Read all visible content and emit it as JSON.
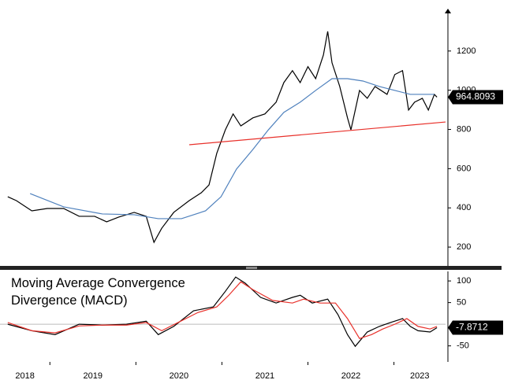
{
  "chart_data": [
    {
      "type": "line",
      "xlim": [
        2018.42,
        2023.6
      ],
      "ylim": [
        104,
        1400
      ],
      "yticks": [
        200,
        400,
        600,
        800,
        1000,
        1200
      ],
      "series": [
        {
          "color": "#000000",
          "last_label": true,
          "x": [
            2018.51,
            2018.61,
            2018.79,
            2018.97,
            2019.16,
            2019.34,
            2019.52,
            2019.66,
            2019.8,
            2019.98,
            2020.12,
            2020.21,
            2020.3,
            2020.44,
            2020.62,
            2020.76,
            2020.85,
            2020.94,
            2021.04,
            2021.13,
            2021.22,
            2021.36,
            2021.5,
            2021.63,
            2021.72,
            2021.82,
            2021.91,
            2022.0,
            2022.09,
            2022.18,
            2022.23,
            2022.28,
            2022.37,
            2022.46,
            2022.5,
            2022.6,
            2022.69,
            2022.78,
            2022.92,
            2023.01,
            2023.1,
            2023.17,
            2023.24,
            2023.33,
            2023.4,
            2023.47,
            2023.5
          ],
          "values": [
            457,
            437,
            385,
            397,
            397,
            357,
            357,
            329,
            353,
            377,
            357,
            224,
            296,
            377,
            437,
            477,
            517,
            678,
            798,
            879,
            818,
            859,
            879,
            939,
            1039,
            1100,
            1039,
            1120,
            1059,
            1180,
            1300,
            1140,
            1019,
            859,
            798,
            999,
            959,
            1019,
            979,
            1080,
            1100,
            899,
            939,
            959,
            899,
            979,
            964.8093
          ]
        },
        {
          "color": "#4f81bd",
          "x": [
            2018.77,
            2019.16,
            2019.61,
            2019.98,
            2020.26,
            2020.53,
            2020.81,
            2020.99,
            2021.17,
            2021.36,
            2021.54,
            2021.72,
            2021.91,
            2022.09,
            2022.28,
            2022.46,
            2022.64,
            2022.83,
            2023.01,
            2023.19,
            2023.47
          ],
          "values": [
            473,
            405,
            369,
            365,
            345,
            345,
            385,
            457,
            598,
            698,
            798,
            887,
            939,
            999,
            1059,
            1059,
            1047,
            1019,
            999,
            979,
            979
          ]
        },
        {
          "color": "#e8302a",
          "x": [
            2020.62,
            2023.6
          ],
          "values": [
            722,
            838
          ]
        }
      ]
    },
    {
      "type": "line",
      "title": "Moving Average Convergence Divergence (MACD)",
      "xlim": [
        2018.42,
        2023.6
      ],
      "xticks": [
        2018,
        2019,
        2020,
        2021,
        2022,
        2023
      ],
      "ylim": [
        -87,
        122
      ],
      "yticks": [
        -50,
        50,
        100
      ],
      "zero_line": true,
      "series": [
        {
          "color": "#000000",
          "last_label": true,
          "x": [
            2018.51,
            2018.79,
            2019.06,
            2019.34,
            2019.61,
            2019.89,
            2020.12,
            2020.26,
            2020.44,
            2020.67,
            2020.9,
            2021.04,
            2021.16,
            2021.27,
            2021.45,
            2021.63,
            2021.82,
            2021.91,
            2022.05,
            2022.23,
            2022.35,
            2022.46,
            2022.55,
            2022.69,
            2022.83,
            2022.96,
            2023.1,
            2023.19,
            2023.28,
            2023.42,
            2023.5
          ],
          "values": [
            0,
            -15,
            -24,
            0,
            -2,
            0,
            7,
            -24,
            -5,
            31,
            40,
            76,
            109,
            95,
            62,
            49,
            62,
            67,
            49,
            58,
            22,
            -24,
            -51,
            -18,
            -5,
            4,
            13,
            -5,
            -15,
            -18,
            -7.8712
          ]
        },
        {
          "color": "#e8302a",
          "x": [
            2018.51,
            2018.79,
            2019.06,
            2019.34,
            2019.61,
            2019.89,
            2020.12,
            2020.3,
            2020.49,
            2020.72,
            2020.94,
            2021.08,
            2021.22,
            2021.36,
            2021.59,
            2021.82,
            2021.95,
            2022.14,
            2022.32,
            2022.46,
            2022.6,
            2022.74,
            2022.87,
            2023.01,
            2023.15,
            2023.28,
            2023.42,
            2023.5
          ],
          "values": [
            4,
            -15,
            -20,
            -4,
            -2,
            -2,
            4,
            -15,
            4,
            27,
            40,
            67,
            98,
            80,
            55,
            49,
            58,
            49,
            49,
            13,
            -33,
            -24,
            -11,
            0,
            13,
            -5,
            -11,
            -5
          ]
        }
      ]
    }
  ]
}
